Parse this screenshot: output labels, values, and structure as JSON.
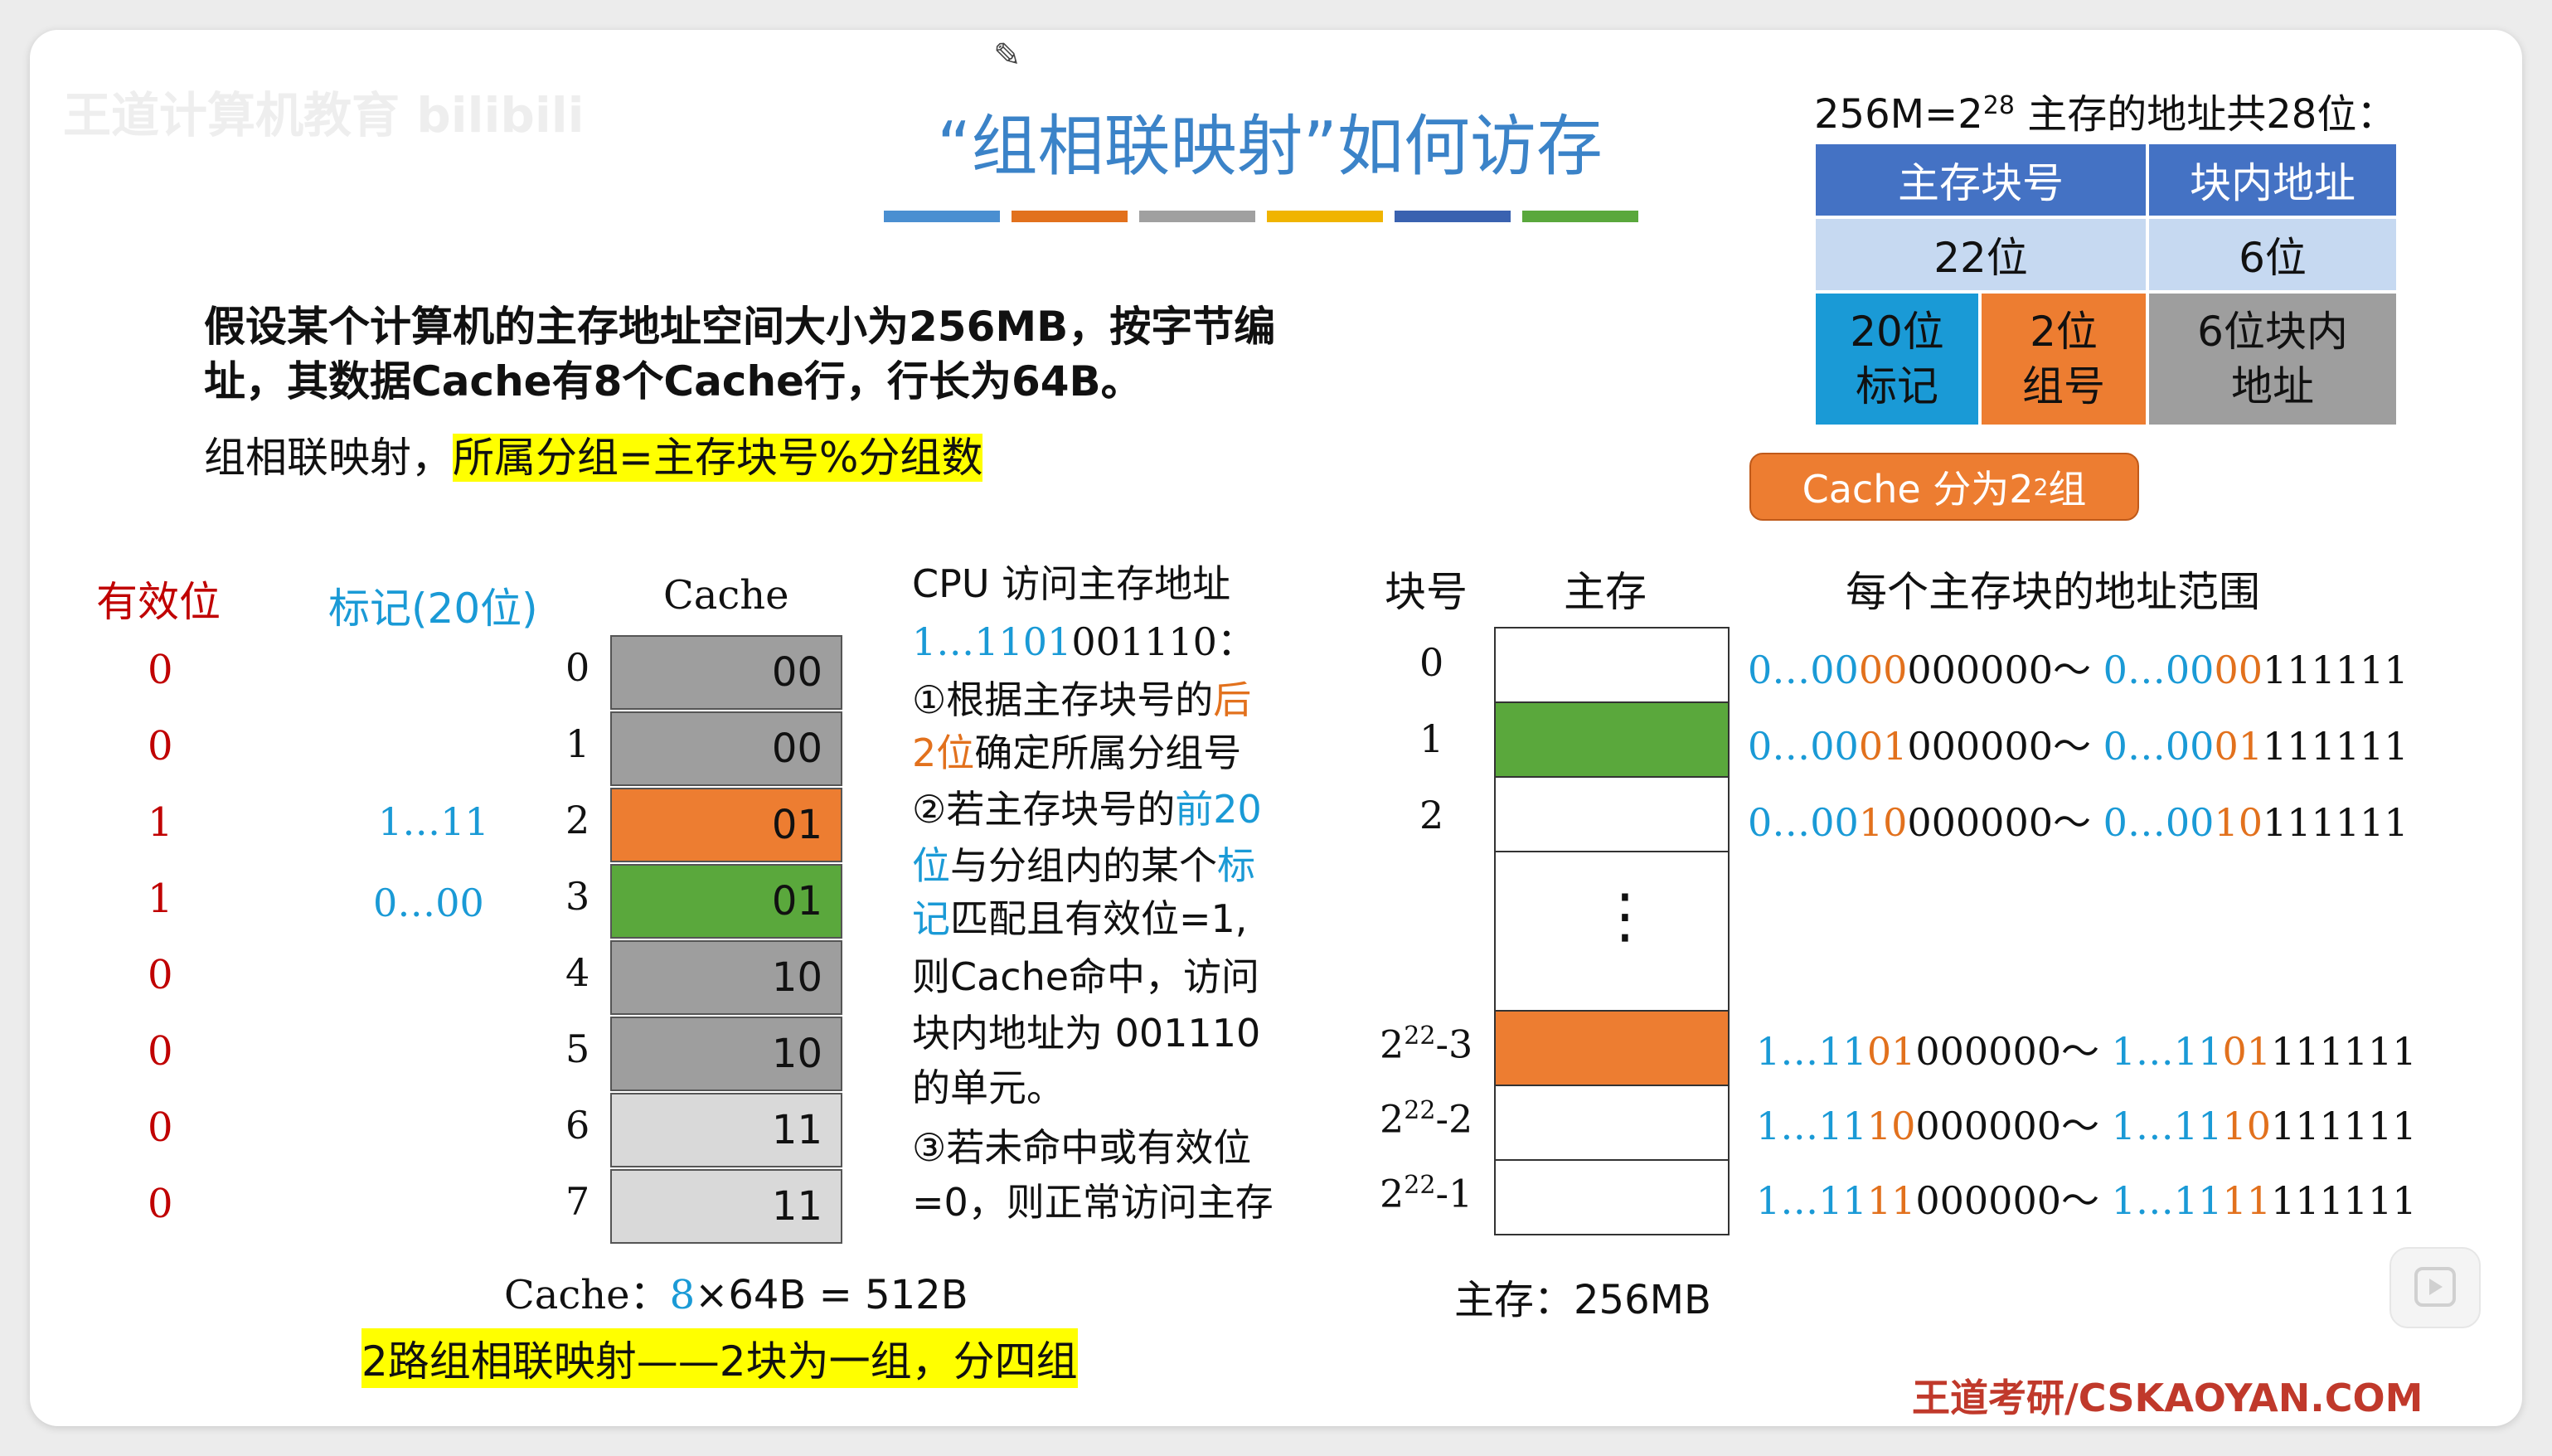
{
  "watermark": "王道计算机教育 bilibili",
  "title": "“组相联映射”如何访存",
  "colors": {
    "title_blue": "#3b83c8",
    "deco_bars": [
      "#4a8fd1",
      "#e2711d",
      "#a0a0a0",
      "#f0b400",
      "#3a62b0",
      "#5aa83c"
    ],
    "orange": "#ed7d31",
    "green": "#5aa83c",
    "gray": "#9e9e9e",
    "light_gray": "#d9d9d9",
    "blue": "#1a9ad6",
    "header_blue": "#4472c4",
    "light_blue": "#c6d9f1",
    "highlight": "#ffff00"
  },
  "problem": {
    "line1": "假设某个计算机的主存地址空间大小为256MB，按字节编",
    "line2": "址，其数据Cache有8个Cache行，行长为64B。"
  },
  "mapping": {
    "prefix": "组相联映射，",
    "highlight": "所属分组=主存块号%分组数"
  },
  "addr": {
    "heading_main": "256M=2",
    "heading_exp": "28",
    "heading_rest": " 主存的地址共28位：",
    "h1": "主存块号",
    "h2": "块内地址",
    "r1c1": "22位",
    "r1c2": "6位",
    "tag_label": [
      "20位",
      "标记"
    ],
    "group_label": [
      "2位",
      "组号"
    ],
    "offset_label": [
      "6位块内",
      "地址"
    ],
    "callout_main": "Cache 分为2",
    "callout_exp": "2",
    "callout_rest": "组"
  },
  "cache": {
    "valid_header": "有效位",
    "tag_header": "标记(20位)",
    "cache_header": "Cache",
    "valid": [
      "0",
      "0",
      "1",
      "1",
      "0",
      "0",
      "0",
      "0"
    ],
    "tags": [
      "",
      "",
      "1…11",
      "0…00",
      "",
      "",
      "",
      ""
    ],
    "rows": [
      "0",
      "1",
      "2",
      "3",
      "4",
      "5",
      "6",
      "7"
    ],
    "groups": [
      "00",
      "00",
      "01",
      "01",
      "10",
      "10",
      "11",
      "11"
    ],
    "size_label": "Cache：",
    "size_num": "8",
    "size_rest": "×64B = 512B",
    "bottom_note": "2路组相联映射——2块为一组，分四组"
  },
  "cpu": {
    "title": "CPU 访问主存地址",
    "addr_a": "1…1101",
    "addr_b": "001110",
    "addr_c": "：",
    "s1_a": "①根据主存块号的",
    "s1_b": "后",
    "s2_a": "2位",
    "s2_b": "确定所属分组号",
    "s3_a": "②若主存块号的",
    "s3_b": "前20",
    "s4_a": "位",
    "s4_b": "与分组内的某个",
    "s4_c": "标",
    "s5_a": "记",
    "s5_b": "匹配且有效位=1,",
    "s6": "则Cache命中，访问",
    "s7": "块内地址为 001110",
    "s8": "的单元。",
    "s9": "③若未命中或有效位",
    "s10": "=0，则正常访问主存"
  },
  "memory": {
    "block_header": "块号",
    "mem_header": "主存",
    "range_header": "每个主存块的地址范围",
    "blocks": [
      "0",
      "1",
      "2"
    ],
    "blocks_high": [
      {
        "base": "2",
        "exp": "22",
        "suffix": "-3"
      },
      {
        "base": "2",
        "exp": "22",
        "suffix": "-2"
      },
      {
        "base": "2",
        "exp": "22",
        "suffix": "-1"
      }
    ],
    "ellipsis": "⋮",
    "ranges": [
      {
        "p1": "0…",
        "g": "00",
        "p2": "00",
        "o": "000000",
        "sep": "～ ",
        "q1": "0…",
        "qg": "00",
        "q2": "00",
        "qo": "111111"
      },
      {
        "p1": "0…",
        "g": "00",
        "p2": "01",
        "o": "000000",
        "sep": "～ ",
        "q1": "0…",
        "qg": "00",
        "q2": "01",
        "qo": "111111"
      },
      {
        "p1": "0…",
        "g": "00",
        "p2": "10",
        "o": "000000",
        "sep": "～ ",
        "q1": "0…",
        "qg": "00",
        "q2": "10",
        "qo": "111111"
      },
      {
        "p1": "1…",
        "g": "11",
        "p2": "01",
        "o": "000000",
        "sep": "～ ",
        "q1": "1…",
        "qg": "11",
        "q2": "01",
        "qo": "111111"
      },
      {
        "p1": "1…",
        "g": "11",
        "p2": "10",
        "o": "000000",
        "sep": "～ ",
        "q1": "1…",
        "qg": "11",
        "q2": "10",
        "qo": "111111"
      },
      {
        "p1": "1…",
        "g": "11",
        "p2": "11",
        "o": "000000",
        "sep": "～ ",
        "q1": "1…",
        "qg": "11",
        "q2": "11",
        "qo": "111111"
      }
    ],
    "size_label": "主存：256MB"
  },
  "footer": "王道考研/CSKAOYAN.COM"
}
